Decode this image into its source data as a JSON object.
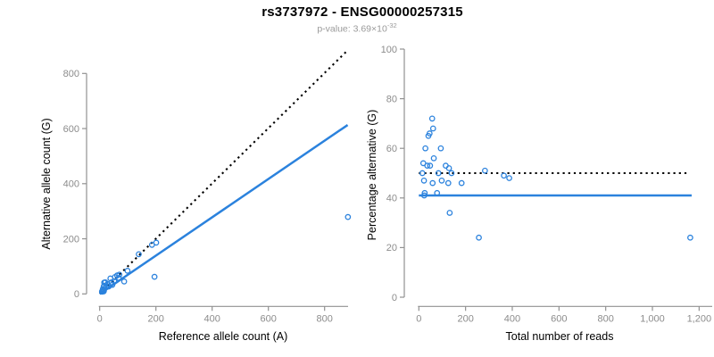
{
  "header": {
    "title": "rs3737972 - ENSG00000257315",
    "pvalue_prefix": "p-value: 3.69×10",
    "pvalue_exponent": "-32"
  },
  "colors": {
    "accent": "#2b82dd",
    "axis": "#919191",
    "tick_label": "#8c8c8c",
    "label_text": "#000000",
    "subtitle_text": "#9a9a9a",
    "dotted_line": "#000000"
  },
  "chart_data": [
    {
      "type": "scatter",
      "panel": "left",
      "xlabel": "Reference allele count (A)",
      "ylabel": "Alternative allele count (G)",
      "xlim": [
        0,
        880
      ],
      "ylim": [
        0,
        880
      ],
      "grid": false,
      "xticks": [
        0,
        200,
        400,
        600,
        800
      ],
      "xtick_labels": [
        "0",
        "200",
        "400",
        "600",
        "800"
      ],
      "yticks": [
        0,
        200,
        400,
        600,
        800
      ],
      "ytick_labels": [
        "0",
        "200",
        "400",
        "600",
        "800"
      ],
      "lines": [
        {
          "name": "identity-line",
          "style": "dotted",
          "color": "#000000",
          "from": [
            0,
            0
          ],
          "to": [
            878,
            880
          ]
        },
        {
          "name": "regression-line",
          "style": "solid",
          "color": "#2b82dd",
          "from": [
            0,
            0
          ],
          "to": [
            882,
            613
          ]
        }
      ],
      "points": [
        [
          16,
          41
        ],
        [
          20,
          42
        ],
        [
          16,
          30
        ],
        [
          14,
          27
        ],
        [
          11,
          17
        ],
        [
          38,
          56
        ],
        [
          28,
          36
        ],
        [
          9,
          10
        ],
        [
          17,
          19
        ],
        [
          23,
          25
        ],
        [
          54,
          61
        ],
        [
          62,
          67
        ],
        [
          8,
          8
        ],
        [
          139,
          144
        ],
        [
          42,
          42
        ],
        [
          70,
          70
        ],
        [
          186,
          178
        ],
        [
          201,
          186
        ],
        [
          12,
          10
        ],
        [
          52,
          46
        ],
        [
          32,
          27
        ],
        [
          68,
          58
        ],
        [
          99,
          84
        ],
        [
          15,
          11
        ],
        [
          45,
          33
        ],
        [
          14,
          9
        ],
        [
          87,
          45
        ],
        [
          195,
          62
        ],
        [
          883,
          279
        ]
      ]
    },
    {
      "type": "scatter",
      "panel": "right",
      "xlabel": "Total number of reads",
      "ylabel": "Percentage alternative (G)",
      "xlim": [
        0,
        1260
      ],
      "ylim": [
        0,
        100
      ],
      "grid": false,
      "xticks": [
        0,
        200,
        400,
        600,
        800,
        1000,
        1200
      ],
      "xtick_labels": [
        "0",
        "200",
        "400",
        "600",
        "800",
        "1,000",
        "1,200"
      ],
      "yticks": [
        0,
        20,
        40,
        60,
        80,
        100
      ],
      "ytick_labels": [
        "0",
        "20",
        "40",
        "60",
        "80",
        "100"
      ],
      "lines": [
        {
          "name": "fifty-percent-line",
          "style": "dotted",
          "color": "#000000",
          "from": [
            0,
            50
          ],
          "to": [
            1150,
            50
          ]
        },
        {
          "name": "mean-percentage-line",
          "style": "solid",
          "color": "#2b82dd",
          "from": [
            0,
            41
          ],
          "to": [
            1168,
            41
          ]
        }
      ],
      "points": [
        [
          57,
          72
        ],
        [
          61,
          68
        ],
        [
          46,
          66
        ],
        [
          41,
          65
        ],
        [
          28,
          60
        ],
        [
          94,
          60
        ],
        [
          64,
          56
        ],
        [
          19,
          54
        ],
        [
          36,
          53
        ],
        [
          48,
          53
        ],
        [
          115,
          53
        ],
        [
          129,
          52
        ],
        [
          15,
          50
        ],
        [
          283,
          51
        ],
        [
          84,
          50
        ],
        [
          140,
          50
        ],
        [
          364,
          49
        ],
        [
          387,
          48
        ],
        [
          22,
          47
        ],
        [
          98,
          47
        ],
        [
          59,
          46
        ],
        [
          126,
          46
        ],
        [
          183,
          46
        ],
        [
          25,
          42
        ],
        [
          78,
          42
        ],
        [
          23,
          41
        ],
        [
          132,
          34
        ],
        [
          257,
          24
        ],
        [
          1162,
          24
        ]
      ]
    }
  ]
}
